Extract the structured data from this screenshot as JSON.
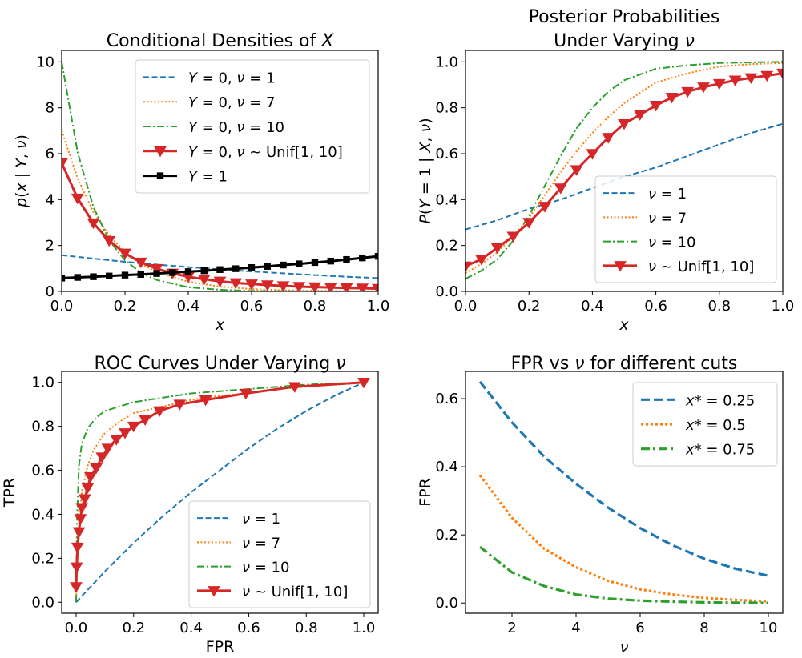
{
  "chart_data": [
    {
      "type": "line",
      "title": "Conditional Densities of X",
      "xlabel": "x",
      "ylabel": "p(x | Y, ν)",
      "xlim": [
        0,
        1
      ],
      "ylim": [
        0,
        10.5
      ],
      "xticks": [
        "0.0",
        "0.2",
        "0.4",
        "0.6",
        "0.8",
        "1.0"
      ],
      "yticks": [
        "0",
        "2",
        "4",
        "6",
        "8",
        "10"
      ],
      "legend_position": "top-right",
      "grid": false,
      "series": [
        {
          "name": "Y = 0, ν = 1",
          "style": "dashed",
          "color": "#1f77b4",
          "x": [
            0,
            0.1,
            0.2,
            0.3,
            0.4,
            0.5,
            0.6,
            0.7,
            0.8,
            0.9,
            1.0
          ],
          "y": [
            1.58,
            1.43,
            1.29,
            1.17,
            1.06,
            0.96,
            0.87,
            0.79,
            0.71,
            0.64,
            0.58
          ]
        },
        {
          "name": "Y = 0, ν = 7",
          "style": "dotted",
          "color": "#ff7f0e",
          "x": [
            0,
            0.05,
            0.1,
            0.15,
            0.2,
            0.25,
            0.3,
            0.4,
            0.5,
            0.6,
            0.7,
            0.8,
            0.9,
            1.0
          ],
          "y": [
            7.0,
            4.93,
            3.46,
            2.44,
            1.71,
            1.21,
            0.85,
            0.42,
            0.21,
            0.1,
            0.05,
            0.03,
            0.01,
            0.01
          ]
        },
        {
          "name": "Y = 0, ν = 10",
          "style": "dashdot",
          "color": "#2ca02c",
          "x": [
            0,
            0.05,
            0.1,
            0.15,
            0.2,
            0.25,
            0.3,
            0.4,
            0.5,
            0.6,
            0.7,
            0.8,
            0.9,
            1.0
          ],
          "y": [
            10.0,
            6.07,
            3.68,
            2.23,
            1.35,
            0.82,
            0.5,
            0.18,
            0.07,
            0.02,
            0.01,
            0.0,
            0.0,
            0.0
          ]
        },
        {
          "name": "Y = 0, ν ~ Unif[1, 10]",
          "style": "solid-triangle",
          "color": "#d62728",
          "x": [
            0,
            0.05,
            0.1,
            0.15,
            0.2,
            0.25,
            0.3,
            0.35,
            0.4,
            0.45,
            0.5,
            0.55,
            0.6,
            0.65,
            0.7,
            0.75,
            0.8,
            0.85,
            0.9,
            0.95,
            1.0
          ],
          "y": [
            5.6,
            4.06,
            2.98,
            2.21,
            1.66,
            1.27,
            0.99,
            0.79,
            0.64,
            0.53,
            0.44,
            0.37,
            0.32,
            0.28,
            0.24,
            0.21,
            0.19,
            0.17,
            0.15,
            0.14,
            0.12
          ]
        },
        {
          "name": "Y = 1",
          "style": "solid-square",
          "color": "#000000",
          "x": [
            0,
            0.05,
            0.1,
            0.15,
            0.2,
            0.25,
            0.3,
            0.35,
            0.4,
            0.45,
            0.5,
            0.55,
            0.6,
            0.65,
            0.7,
            0.75,
            0.8,
            0.85,
            0.9,
            0.95,
            1.0
          ],
          "y": [
            0.58,
            0.61,
            0.64,
            0.67,
            0.71,
            0.74,
            0.78,
            0.82,
            0.86,
            0.9,
            0.95,
            0.99,
            1.04,
            1.09,
            1.15,
            1.2,
            1.26,
            1.32,
            1.39,
            1.46,
            1.53
          ]
        }
      ]
    },
    {
      "type": "line",
      "title": "Posterior Probabilities Under Varying ν",
      "title_lines": [
        "Posterior Probabilities",
        "Under Varying ν"
      ],
      "xlabel": "x",
      "ylabel": "P(Y = 1 | X, ν)",
      "xlim": [
        0,
        1
      ],
      "ylim": [
        0,
        1.05
      ],
      "xticks": [
        "0.0",
        "0.2",
        "0.4",
        "0.6",
        "0.8",
        "1.0"
      ],
      "yticks": [
        "0.0",
        "0.2",
        "0.4",
        "0.6",
        "0.8",
        "1.0"
      ],
      "legend_position": "bottom-right",
      "grid": false,
      "series": [
        {
          "name": "ν = 1",
          "style": "dashed",
          "color": "#1f77b4",
          "x": [
            0,
            0.1,
            0.2,
            0.3,
            0.4,
            0.5,
            0.6,
            0.7,
            0.8,
            0.9,
            1.0
          ],
          "y": [
            0.27,
            0.31,
            0.36,
            0.4,
            0.45,
            0.5,
            0.54,
            0.59,
            0.64,
            0.69,
            0.73
          ]
        },
        {
          "name": "ν = 7",
          "style": "dotted",
          "color": "#ff7f0e",
          "x": [
            0,
            0.05,
            0.1,
            0.15,
            0.2,
            0.25,
            0.3,
            0.35,
            0.4,
            0.45,
            0.5,
            0.6,
            0.7,
            0.8,
            0.9,
            1.0
          ],
          "y": [
            0.08,
            0.12,
            0.17,
            0.24,
            0.32,
            0.42,
            0.52,
            0.61,
            0.69,
            0.76,
            0.82,
            0.91,
            0.95,
            0.98,
            0.99,
            0.995
          ]
        },
        {
          "name": "ν = 10",
          "style": "dashdot",
          "color": "#2ca02c",
          "x": [
            0,
            0.05,
            0.1,
            0.15,
            0.2,
            0.25,
            0.3,
            0.35,
            0.4,
            0.45,
            0.5,
            0.6,
            0.7,
            0.8,
            0.9,
            1.0
          ],
          "y": [
            0.055,
            0.09,
            0.14,
            0.22,
            0.33,
            0.46,
            0.59,
            0.71,
            0.8,
            0.87,
            0.92,
            0.97,
            0.985,
            0.995,
            0.998,
            1.0
          ]
        },
        {
          "name": "ν ~ Unif[1, 10]",
          "style": "solid-triangle",
          "color": "#d62728",
          "x": [
            0,
            0.05,
            0.1,
            0.15,
            0.2,
            0.25,
            0.3,
            0.35,
            0.4,
            0.45,
            0.5,
            0.55,
            0.6,
            0.65,
            0.7,
            0.75,
            0.8,
            0.85,
            0.9,
            0.95,
            1.0
          ],
          "y": [
            0.11,
            0.14,
            0.19,
            0.24,
            0.3,
            0.37,
            0.45,
            0.53,
            0.6,
            0.67,
            0.73,
            0.77,
            0.81,
            0.845,
            0.87,
            0.89,
            0.905,
            0.92,
            0.93,
            0.94,
            0.95
          ]
        }
      ]
    },
    {
      "type": "line",
      "title": "ROC Curves Under Varying ν",
      "xlabel": "FPR",
      "ylabel": "TPR",
      "xlim": [
        -0.05,
        1.05
      ],
      "ylim": [
        -0.05,
        1.05
      ],
      "xticks": [
        "0.0",
        "0.2",
        "0.4",
        "0.6",
        "0.8",
        "1.0"
      ],
      "yticks": [
        "0.0",
        "0.2",
        "0.4",
        "0.6",
        "0.8",
        "1.0"
      ],
      "legend_position": "bottom-right",
      "grid": false,
      "series": [
        {
          "name": "ν = 1",
          "style": "dashed",
          "color": "#1f77b4",
          "x": [
            0,
            0.05,
            0.1,
            0.2,
            0.3,
            0.4,
            0.5,
            0.6,
            0.7,
            0.8,
            0.9,
            1.0
          ],
          "y": [
            0,
            0.07,
            0.14,
            0.27,
            0.39,
            0.5,
            0.6,
            0.7,
            0.79,
            0.87,
            0.94,
            1.0
          ]
        },
        {
          "name": "ν = 7",
          "style": "dotted",
          "color": "#ff7f0e",
          "x": [
            0,
            0.01,
            0.02,
            0.04,
            0.06,
            0.1,
            0.15,
            0.2,
            0.3,
            0.4,
            0.5,
            0.6,
            0.7,
            0.8,
            0.9,
            1.0
          ],
          "y": [
            0,
            0.36,
            0.5,
            0.62,
            0.69,
            0.77,
            0.82,
            0.86,
            0.89,
            0.92,
            0.94,
            0.95,
            0.97,
            0.98,
            0.99,
            1.0
          ]
        },
        {
          "name": "ν = 10",
          "style": "dashdot",
          "color": "#2ca02c",
          "x": [
            0,
            0.003,
            0.01,
            0.02,
            0.04,
            0.07,
            0.1,
            0.15,
            0.2,
            0.3,
            0.4,
            0.5,
            0.6,
            0.7,
            0.8,
            0.9,
            1.0
          ],
          "y": [
            0,
            0.35,
            0.62,
            0.72,
            0.79,
            0.84,
            0.87,
            0.89,
            0.91,
            0.93,
            0.95,
            0.96,
            0.97,
            0.98,
            0.99,
            0.995,
            1.0
          ]
        },
        {
          "name": "ν ~ Unif[1, 10]",
          "style": "solid-triangle",
          "color": "#d62728",
          "x": [
            0,
            0.002,
            0.005,
            0.01,
            0.015,
            0.02,
            0.03,
            0.04,
            0.05,
            0.07,
            0.09,
            0.11,
            0.14,
            0.17,
            0.2,
            0.24,
            0.29,
            0.36,
            0.45,
            0.59,
            0.76,
            1.0
          ],
          "y": [
            0.07,
            0.16,
            0.25,
            0.32,
            0.38,
            0.43,
            0.47,
            0.52,
            0.57,
            0.61,
            0.66,
            0.7,
            0.74,
            0.77,
            0.8,
            0.83,
            0.87,
            0.9,
            0.92,
            0.95,
            0.98,
            1.0
          ]
        }
      ]
    },
    {
      "type": "line",
      "title": "FPR vs ν for different cuts",
      "xlabel": "ν",
      "ylabel": "FPR",
      "xlim": [
        0.55,
        10.45
      ],
      "ylim": [
        -0.03,
        0.68
      ],
      "xticks": [
        "2",
        "4",
        "6",
        "8",
        "10"
      ],
      "yticks": [
        "0.0",
        "0.2",
        "0.4",
        "0.6"
      ],
      "legend_position": "top-right",
      "grid": false,
      "series": [
        {
          "name": "x* = 0.25",
          "style": "dashed-thick",
          "color": "#1f77b4",
          "x": [
            1,
            2,
            3,
            4,
            5,
            6,
            7,
            8,
            9,
            10
          ],
          "y": [
            0.65,
            0.53,
            0.43,
            0.35,
            0.28,
            0.22,
            0.17,
            0.13,
            0.1,
            0.08
          ]
        },
        {
          "name": "x* = 0.5",
          "style": "dotted-thick",
          "color": "#ff7f0e",
          "x": [
            1,
            2,
            3,
            4,
            5,
            6,
            7,
            8,
            9,
            10
          ],
          "y": [
            0.375,
            0.25,
            0.16,
            0.105,
            0.065,
            0.04,
            0.025,
            0.015,
            0.009,
            0.005
          ]
        },
        {
          "name": "x* = 0.75",
          "style": "dashdot-thick",
          "color": "#2ca02c",
          "x": [
            1,
            2,
            3,
            4,
            5,
            6,
            7,
            8,
            9,
            10
          ],
          "y": [
            0.165,
            0.09,
            0.05,
            0.025,
            0.013,
            0.007,
            0.004,
            0.002,
            0.001,
            0.0005
          ]
        }
      ]
    }
  ]
}
